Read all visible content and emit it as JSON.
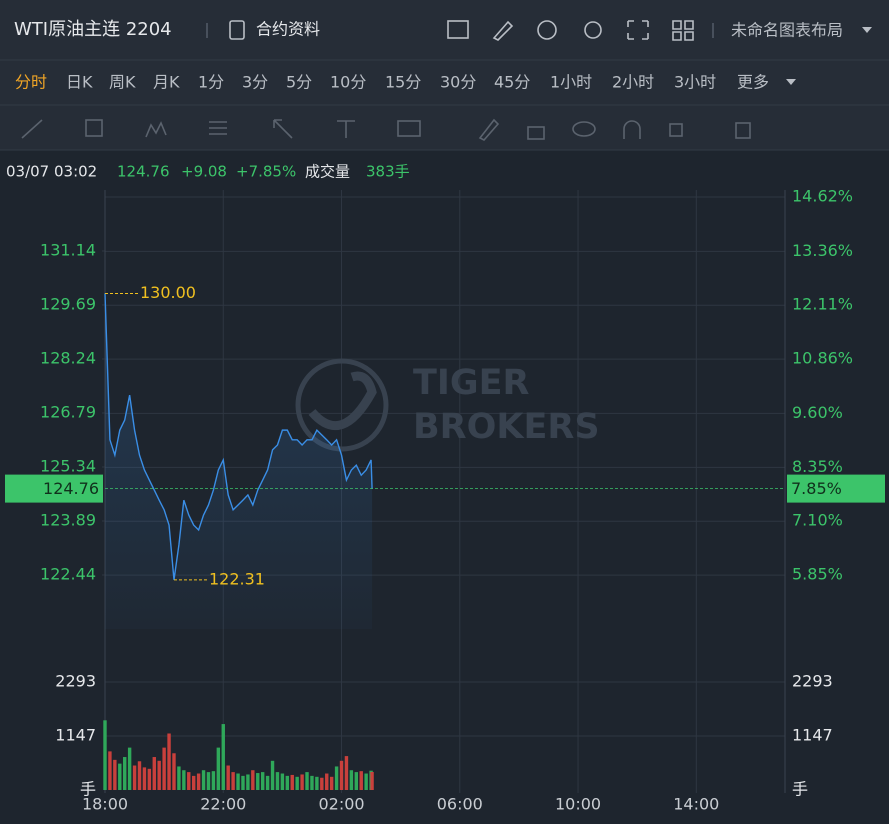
{
  "header": {
    "title": "WTI原油主连 2204",
    "contract_info": "合约资料",
    "layout_name": "未命名图表布局"
  },
  "periods": {
    "items": [
      "分时",
      "日K",
      "周K",
      "月K",
      "1分",
      "3分",
      "5分",
      "10分",
      "15分",
      "30分",
      "45分",
      "1小时",
      "2小时",
      "3小时",
      "更多"
    ],
    "active": 0
  },
  "quote": {
    "time": "03/07 03:02",
    "price": "124.76",
    "change": "+9.08",
    "change_pct": "+7.85%",
    "volume_label": "成交量",
    "volume": "383手"
  },
  "chart_data": [
    {
      "type": "line",
      "x": [
        "18:00",
        "18:10",
        "18:20",
        "18:30",
        "18:40",
        "18:50",
        "19:00",
        "19:10",
        "19:20",
        "19:30",
        "19:40",
        "19:50",
        "20:00",
        "20:10",
        "20:20",
        "20:30",
        "20:40",
        "20:50",
        "21:00",
        "21:10",
        "21:20",
        "21:30",
        "21:40",
        "21:50",
        "22:00",
        "22:10",
        "22:20",
        "22:30",
        "22:40",
        "22:50",
        "23:00",
        "23:10",
        "23:20",
        "23:30",
        "23:40",
        "23:50",
        "00:00",
        "00:10",
        "00:20",
        "00:30",
        "00:40",
        "00:50",
        "01:00",
        "01:10",
        "01:20",
        "01:30",
        "01:40",
        "01:50",
        "02:00",
        "02:10",
        "02:20",
        "02:30",
        "02:40",
        "02:50",
        "03:00",
        "03:02"
      ],
      "series": [
        {
          "color": "#3a8ee6",
          "values": [
            130.0,
            126.07,
            125.66,
            126.33,
            126.6,
            127.27,
            126.33,
            125.66,
            125.26,
            124.99,
            124.72,
            124.45,
            124.19,
            123.78,
            122.31,
            123.25,
            124.45,
            124.05,
            123.78,
            123.65,
            124.05,
            124.32,
            124.72,
            125.26,
            125.53,
            124.59,
            124.19,
            124.32,
            124.45,
            124.59,
            124.32,
            124.72,
            124.99,
            125.26,
            125.8,
            125.93,
            126.33,
            126.33,
            126.07,
            126.07,
            125.93,
            126.07,
            126.07,
            126.33,
            126.2,
            126.07,
            125.93,
            126.07,
            125.66,
            124.99,
            125.26,
            125.39,
            125.12,
            125.26,
            125.53,
            124.76
          ]
        }
      ],
      "xlim": [
        "18:00",
        "17:00"
      ],
      "xticks": [
        "18:00",
        "22:00",
        "02:00",
        "06:00",
        "10:00",
        "14:00"
      ],
      "ylim": [
        120.99,
        132.59
      ],
      "yticks": [
        122.44,
        123.89,
        125.34,
        126.79,
        128.24,
        129.69,
        131.14
      ],
      "y2lim": [
        4.6,
        14.62
      ],
      "y2ticks": [
        {
          "value": 5.85,
          "label": "5.85%"
        },
        {
          "value": 7.1,
          "label": "7.10%"
        },
        {
          "value": 8.35,
          "label": "8.35%"
        },
        {
          "value": 9.6,
          "label": "9.60%"
        },
        {
          "value": 10.86,
          "label": "10.86%"
        },
        {
          "value": 12.11,
          "label": "12.11%"
        },
        {
          "value": 13.36,
          "label": "13.36%"
        },
        {
          "value": 14.62,
          "label": "14.62%"
        }
      ],
      "last_price": 124.76,
      "last_pct": {
        "value": 7.85,
        "label": "7.85%"
      },
      "annotations": [
        {
          "x": "18:00",
          "value": 130.0,
          "label": "130.00"
        },
        {
          "x": "20:20",
          "value": 122.31,
          "label": "122.31"
        }
      ],
      "grid": true,
      "watermark": [
        "TIGER",
        "BROKERS"
      ]
    },
    {
      "type": "bar",
      "x": [
        "18:00",
        "18:10",
        "18:20",
        "18:30",
        "18:40",
        "18:50",
        "19:00",
        "19:10",
        "19:20",
        "19:30",
        "19:40",
        "19:50",
        "20:00",
        "20:10",
        "20:20",
        "20:30",
        "20:40",
        "20:50",
        "21:00",
        "21:10",
        "21:20",
        "21:30",
        "21:40",
        "21:50",
        "22:00",
        "22:10",
        "22:20",
        "22:30",
        "22:40",
        "22:50",
        "23:00",
        "23:10",
        "23:20",
        "23:30",
        "23:40",
        "23:50",
        "00:00",
        "00:10",
        "00:20",
        "00:30",
        "00:40",
        "00:50",
        "01:00",
        "01:10",
        "01:20",
        "01:30",
        "01:40",
        "01:50",
        "02:00",
        "02:10",
        "02:20",
        "02:30",
        "02:40",
        "02:50",
        "03:00",
        "03:02"
      ],
      "values": [
        1480,
        820,
        640,
        560,
        700,
        900,
        520,
        610,
        480,
        450,
        700,
        620,
        900,
        1200,
        780,
        500,
        420,
        380,
        300,
        350,
        420,
        380,
        400,
        900,
        1400,
        520,
        380,
        350,
        300,
        330,
        420,
        360,
        380,
        300,
        620,
        380,
        350,
        300,
        320,
        280,
        330,
        380,
        300,
        280,
        260,
        350,
        280,
        500,
        620,
        720,
        420,
        380,
        400,
        350,
        410,
        383
      ],
      "up_color": "#2fa85a",
      "down_color": "#c9403c",
      "ylim": [
        0,
        3440
      ],
      "yticks": [
        {
          "value": 0,
          "label": "手"
        },
        1147,
        2293
      ]
    }
  ]
}
